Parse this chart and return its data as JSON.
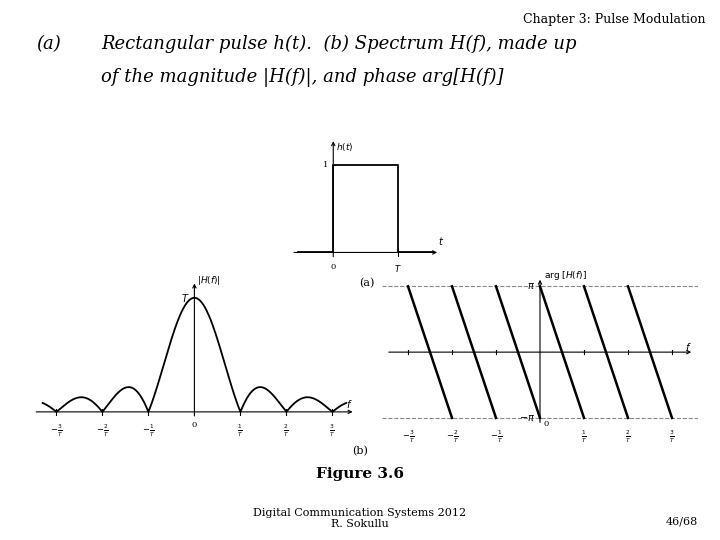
{
  "title_chapter": "Chapter 3: Pulse Modulation",
  "title_chapter_fontsize": 9,
  "main_title_italic": "(a)   Rectangular pulse h(t).  (b) Spectrum H(f), made up\n       of the magnitude |H(f)|, and phase arg[H(f)]",
  "main_title_fontsize": 13,
  "figure_label": "Figure 3.6",
  "figure_label_fontsize": 11,
  "footer_left": "Digital Communication Systems 2012\nR. Sokullu",
  "footer_right": "46/68",
  "footer_fontsize": 8,
  "bg_color": "#ffffff",
  "plot_color": "#000000",
  "dashed_color": "#888888",
  "sub_label_a": "(a)",
  "sub_label_b": "(b)"
}
